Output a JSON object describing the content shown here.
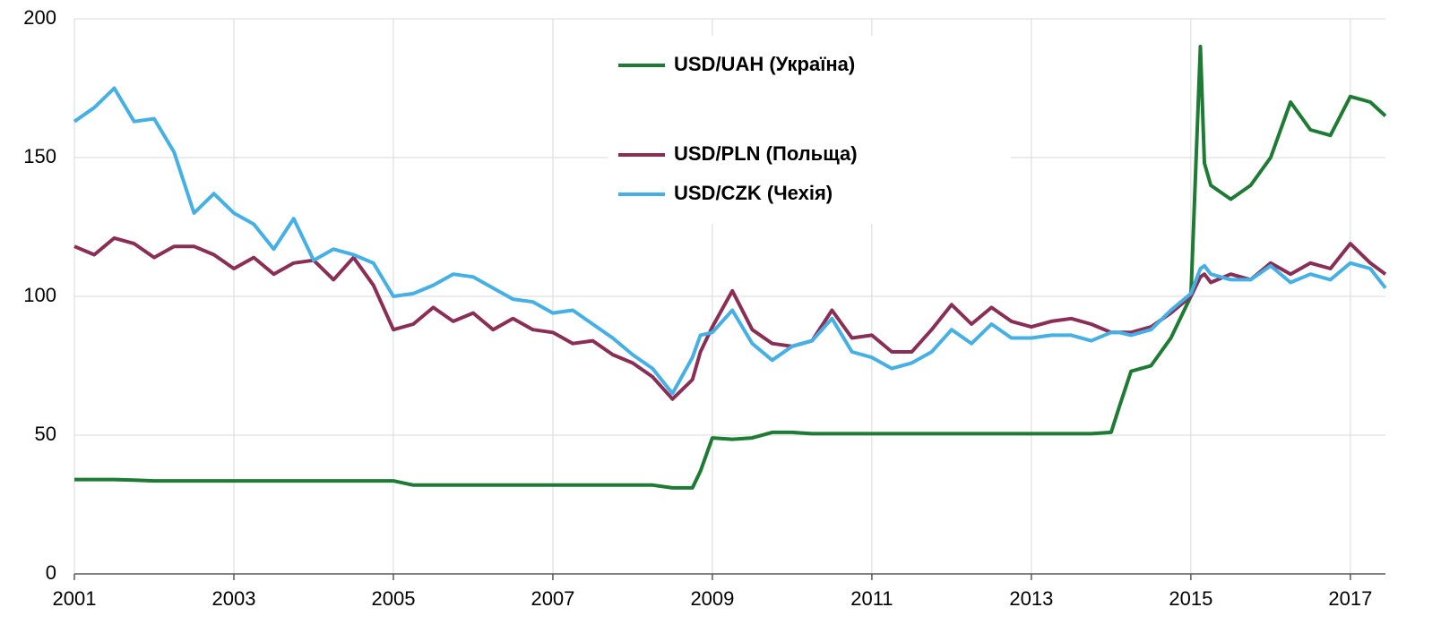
{
  "chart_data": {
    "type": "line",
    "x": [
      2001,
      2001.25,
      2001.5,
      2001.75,
      2002,
      2002.25,
      2002.5,
      2002.75,
      2003,
      2003.25,
      2003.5,
      2003.75,
      2004,
      2004.25,
      2004.5,
      2004.75,
      2005,
      2005.25,
      2005.5,
      2005.75,
      2006,
      2006.25,
      2006.5,
      2006.75,
      2007,
      2007.25,
      2007.5,
      2007.75,
      2008,
      2008.25,
      2008.5,
      2008.75,
      2008.85,
      2009,
      2009.25,
      2009.5,
      2009.75,
      2010,
      2010.25,
      2010.5,
      2010.75,
      2011,
      2011.25,
      2011.5,
      2011.75,
      2012,
      2012.25,
      2012.5,
      2012.75,
      2013,
      2013.25,
      2013.5,
      2013.75,
      2014,
      2014.1,
      2014.25,
      2014.5,
      2014.75,
      2015,
      2015.12,
      2015.17,
      2015.25,
      2015.5,
      2015.75,
      2016,
      2016.25,
      2016.5,
      2016.75,
      2017,
      2017.25,
      2017.44
    ],
    "series": [
      {
        "name": "USD/UAH (Україна)",
        "color": "#1e7b34",
        "values": [
          34,
          34,
          34,
          33.8,
          33.5,
          33.5,
          33.5,
          33.5,
          33.5,
          33.5,
          33.5,
          33.5,
          33.5,
          33.5,
          33.5,
          33.5,
          33.5,
          32,
          32,
          32,
          32,
          32,
          32,
          32,
          32,
          32,
          32,
          32,
          32,
          32,
          31,
          31,
          37,
          49,
          48.5,
          49,
          51,
          51,
          50.5,
          50.5,
          50.5,
          50.5,
          50.5,
          50.5,
          50.5,
          50.5,
          50.5,
          50.5,
          50.5,
          50.5,
          50.5,
          50.5,
          50.5,
          51,
          60,
          73,
          75,
          85,
          100,
          190,
          148,
          140,
          135,
          140,
          150,
          170,
          160,
          158,
          172,
          170,
          165
        ]
      },
      {
        "name": "USD/PLN (Польща)",
        "color": "#8b2e55",
        "values": [
          118,
          115,
          121,
          119,
          114,
          118,
          118,
          115,
          110,
          114,
          108,
          112,
          113,
          106,
          114,
          104,
          88,
          90,
          96,
          91,
          94,
          88,
          92,
          88,
          87,
          83,
          84,
          79,
          76,
          71,
          63,
          70,
          80,
          89,
          102,
          88,
          83,
          82,
          84,
          95,
          85,
          86,
          80,
          80,
          88,
          97,
          90,
          96,
          91,
          89,
          91,
          92,
          90,
          87,
          87,
          87,
          89,
          94,
          100,
          107,
          108,
          105,
          108,
          106,
          112,
          108,
          112,
          110,
          119,
          112,
          108
        ]
      },
      {
        "name": "USD/CZK (Чехія)",
        "color": "#45b0e6",
        "values": [
          163,
          168,
          175,
          163,
          164,
          152,
          130,
          137,
          130,
          126,
          117,
          128,
          113,
          117,
          115,
          112,
          100,
          101,
          104,
          108,
          107,
          103,
          99,
          98,
          94,
          95,
          90,
          85,
          79,
          74,
          65,
          78,
          86,
          87,
          95,
          83,
          77,
          82,
          84,
          92,
          80,
          78,
          74,
          76,
          80,
          88,
          83,
          90,
          85,
          85,
          86,
          86,
          84,
          87,
          87,
          86,
          88,
          95,
          101,
          110,
          111,
          108,
          106,
          106,
          111,
          105,
          108,
          106,
          112,
          110,
          103
        ]
      }
    ],
    "xlim": [
      2001,
      2017.44
    ],
    "xticks": [
      2001,
      2003,
      2005,
      2007,
      2009,
      2011,
      2013,
      2015,
      2017
    ],
    "ylim": [
      0,
      200
    ],
    "yticks": [
      0,
      50,
      100,
      150,
      200
    ],
    "grid": true,
    "legend": "top-center"
  }
}
